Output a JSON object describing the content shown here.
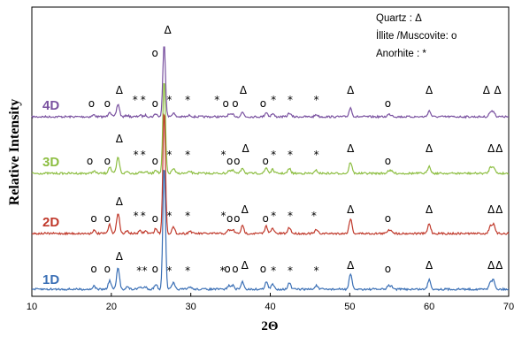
{
  "chart_data": {
    "type": "line",
    "xlabel": "2Θ",
    "ylabel": "Relative Intensity",
    "xlim": [
      10,
      70
    ],
    "xticks": [
      "10",
      "20",
      "30",
      "40",
      "50",
      "60",
      "70"
    ],
    "legend": {
      "placement": "top-right",
      "entries": [
        "Quartz : Δ",
        "İllite /Muscovite: o",
        "Anorhite : *"
      ]
    },
    "grid": false,
    "peaks": [
      {
        "x": 17.8,
        "h": 0.025
      },
      {
        "x": 19.8,
        "h": 0.07
      },
      {
        "x": 20.85,
        "h": 0.17
      },
      {
        "x": 22.0,
        "h": 0.02
      },
      {
        "x": 23.6,
        "h": 0.02
      },
      {
        "x": 24.3,
        "h": 0.02
      },
      {
        "x": 25.6,
        "h": 0.04
      },
      {
        "x": 26.65,
        "h": 1.0
      },
      {
        "x": 27.8,
        "h": 0.05
      },
      {
        "x": 29.9,
        "h": 0.02
      },
      {
        "x": 34.8,
        "h": 0.03
      },
      {
        "x": 35.3,
        "h": 0.03
      },
      {
        "x": 36.5,
        "h": 0.06
      },
      {
        "x": 39.5,
        "h": 0.06
      },
      {
        "x": 40.3,
        "h": 0.04
      },
      {
        "x": 42.4,
        "h": 0.05
      },
      {
        "x": 45.8,
        "h": 0.03
      },
      {
        "x": 50.1,
        "h": 0.12
      },
      {
        "x": 54.9,
        "h": 0.03
      },
      {
        "x": 55.3,
        "h": 0.02
      },
      {
        "x": 60.0,
        "h": 0.08
      },
      {
        "x": 67.7,
        "h": 0.06
      },
      {
        "x": 68.1,
        "h": 0.07
      }
    ],
    "series": [
      {
        "name": "4D",
        "color": "#7a52a0",
        "markers": [
          {
            "x": 17.5,
            "s": "o"
          },
          {
            "x": 19.5,
            "s": "o"
          },
          {
            "x": 21.0,
            "s": "Δ"
          },
          {
            "x": 23.0,
            "s": "*"
          },
          {
            "x": 24.0,
            "s": "*"
          },
          {
            "x": 25.5,
            "s": "o"
          },
          {
            "x": 27.3,
            "s": "*"
          },
          {
            "x": 29.6,
            "s": "*"
          },
          {
            "x": 33.3,
            "s": "*"
          },
          {
            "x": 34.4,
            "s": "o"
          },
          {
            "x": 35.6,
            "s": "o"
          },
          {
            "x": 36.6,
            "s": "Δ"
          },
          {
            "x": 39.1,
            "s": "o"
          },
          {
            "x": 40.4,
            "s": "*"
          },
          {
            "x": 42.5,
            "s": "*"
          },
          {
            "x": 45.8,
            "s": "*"
          },
          {
            "x": 50.1,
            "s": "Δ"
          },
          {
            "x": 54.8,
            "s": "o"
          },
          {
            "x": 60.0,
            "s": "Δ"
          },
          {
            "x": 67.2,
            "s": "Δ"
          },
          {
            "x": 68.6,
            "s": "Δ"
          }
        ]
      },
      {
        "name": "3D",
        "color": "#8dbe42",
        "markers": [
          {
            "x": 17.3,
            "s": "o"
          },
          {
            "x": 19.5,
            "s": "o"
          },
          {
            "x": 21.0,
            "s": "Δ"
          },
          {
            "x": 23.1,
            "s": "*"
          },
          {
            "x": 24.0,
            "s": "*"
          },
          {
            "x": 25.5,
            "s": "o"
          },
          {
            "x": 27.3,
            "s": "*"
          },
          {
            "x": 29.6,
            "s": "*"
          },
          {
            "x": 34.1,
            "s": "*"
          },
          {
            "x": 34.9,
            "s": "o"
          },
          {
            "x": 35.8,
            "s": "o"
          },
          {
            "x": 36.9,
            "s": "Δ"
          },
          {
            "x": 39.4,
            "s": "o"
          },
          {
            "x": 40.4,
            "s": "*"
          },
          {
            "x": 42.5,
            "s": "*"
          },
          {
            "x": 45.8,
            "s": "*"
          },
          {
            "x": 50.1,
            "s": "Δ"
          },
          {
            "x": 54.8,
            "s": "o"
          },
          {
            "x": 60.0,
            "s": "Δ"
          },
          {
            "x": 67.8,
            "s": "Δ"
          },
          {
            "x": 68.8,
            "s": "Δ"
          }
        ]
      },
      {
        "name": "2D",
        "color": "#c0392b",
        "markers": [
          {
            "x": 17.8,
            "s": "o"
          },
          {
            "x": 19.5,
            "s": "o"
          },
          {
            "x": 21.0,
            "s": "Δ"
          },
          {
            "x": 23.1,
            "s": "*"
          },
          {
            "x": 24.0,
            "s": "*"
          },
          {
            "x": 25.5,
            "s": "o"
          },
          {
            "x": 27.3,
            "s": "*"
          },
          {
            "x": 29.6,
            "s": "*"
          },
          {
            "x": 34.1,
            "s": "*"
          },
          {
            "x": 34.9,
            "s": "o"
          },
          {
            "x": 35.8,
            "s": "o"
          },
          {
            "x": 36.8,
            "s": "Δ"
          },
          {
            "x": 39.4,
            "s": "o"
          },
          {
            "x": 40.4,
            "s": "*"
          },
          {
            "x": 42.5,
            "s": "*"
          },
          {
            "x": 45.5,
            "s": "*"
          },
          {
            "x": 50.1,
            "s": "Δ"
          },
          {
            "x": 54.8,
            "s": "o"
          },
          {
            "x": 60.0,
            "s": "Δ"
          },
          {
            "x": 67.8,
            "s": "Δ"
          },
          {
            "x": 68.8,
            "s": "Δ"
          }
        ]
      },
      {
        "name": "1D",
        "color": "#3a6fb5",
        "markers": [
          {
            "x": 17.8,
            "s": "o"
          },
          {
            "x": 19.5,
            "s": "o"
          },
          {
            "x": 21.0,
            "s": "Δ"
          },
          {
            "x": 23.5,
            "s": "*"
          },
          {
            "x": 24.2,
            "s": "*"
          },
          {
            "x": 25.5,
            "s": "o"
          },
          {
            "x": 27.3,
            "s": "*"
          },
          {
            "x": 29.6,
            "s": "*"
          },
          {
            "x": 34.0,
            "s": "*"
          },
          {
            "x": 34.6,
            "s": "o"
          },
          {
            "x": 35.6,
            "s": "o"
          },
          {
            "x": 36.8,
            "s": "Δ"
          },
          {
            "x": 39.1,
            "s": "o"
          },
          {
            "x": 40.4,
            "s": "*"
          },
          {
            "x": 42.5,
            "s": "*"
          },
          {
            "x": 45.8,
            "s": "*"
          },
          {
            "x": 50.1,
            "s": "Δ"
          },
          {
            "x": 54.8,
            "s": "o"
          },
          {
            "x": 60.0,
            "s": "Δ"
          },
          {
            "x": 67.8,
            "s": "Δ"
          },
          {
            "x": 68.8,
            "s": "Δ"
          }
        ]
      }
    ]
  }
}
